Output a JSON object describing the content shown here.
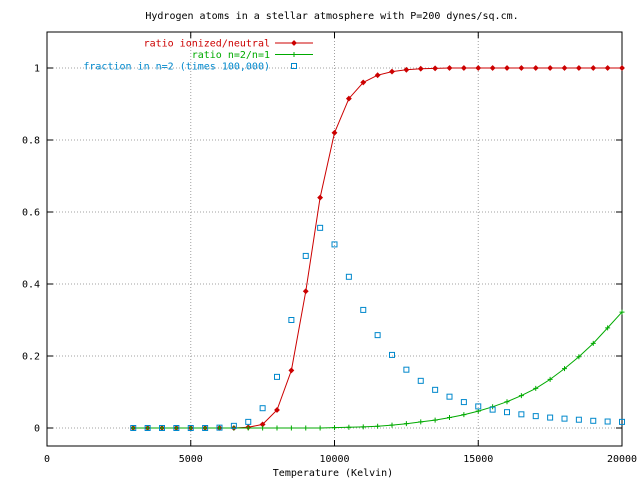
{
  "chart_data": {
    "type": "line",
    "title": "Hydrogen atoms in a stellar atmosphere with P=200 dynes/sq.cm.",
    "xlabel": "Temperature (Kelvin)",
    "ylabel": "",
    "xlim": [
      0,
      20000
    ],
    "ylim": [
      -0.05,
      1.1
    ],
    "x_ticks": [
      0,
      5000,
      10000,
      15000,
      20000
    ],
    "x_tick_labels": [
      "0",
      "5000",
      "10000",
      "15000",
      "20000"
    ],
    "y_ticks": [
      0,
      0.2,
      0.4,
      0.6,
      0.8,
      1
    ],
    "y_tick_labels": [
      "0",
      "0.2",
      "0.4",
      "0.6",
      "0.8",
      "1"
    ],
    "grid": true,
    "legend_position": "top-left",
    "series": [
      {
        "name": "ratio ionized/neutral",
        "style": "linespoints",
        "color": "#cc0000",
        "x": [
          3000,
          3500,
          4000,
          4500,
          5000,
          5500,
          6000,
          6500,
          7000,
          7500,
          8000,
          8500,
          9000,
          9500,
          10000,
          10500,
          11000,
          11500,
          12000,
          12500,
          13000,
          13500,
          14000,
          14500,
          15000,
          15500,
          16000,
          16500,
          17000,
          17500,
          18000,
          18500,
          19000,
          19500,
          20000
        ],
        "y": [
          0,
          0,
          0,
          0,
          0,
          0,
          0,
          0,
          0.002,
          0.01,
          0.05,
          0.16,
          0.38,
          0.64,
          0.82,
          0.915,
          0.96,
          0.98,
          0.99,
          0.995,
          0.998,
          0.999,
          1,
          1,
          1,
          1,
          1,
          1,
          1,
          1,
          1,
          1,
          1,
          1,
          1
        ]
      },
      {
        "name": "ratio n=2/n=1",
        "style": "linespoints",
        "color": "#00aa00",
        "x": [
          3000,
          3500,
          4000,
          4500,
          5000,
          5500,
          6000,
          6500,
          7000,
          7500,
          8000,
          8500,
          9000,
          9500,
          10000,
          10500,
          11000,
          11500,
          12000,
          12500,
          13000,
          13500,
          14000,
          14500,
          15000,
          15500,
          16000,
          16500,
          17000,
          17500,
          18000,
          18500,
          19000,
          19500,
          20000
        ],
        "y": [
          0,
          0,
          0,
          0,
          0,
          0,
          0,
          0,
          0,
          0,
          0,
          0,
          0,
          0,
          0.001,
          0.002,
          0.003,
          0.005,
          0.008,
          0.012,
          0.017,
          0.022,
          0.029,
          0.037,
          0.047,
          0.059,
          0.073,
          0.09,
          0.11,
          0.135,
          0.165,
          0.198,
          0.235,
          0.278,
          0.322
        ]
      },
      {
        "name": "fraction in n=2 (times 100,000)",
        "style": "points",
        "color": "#0088cc",
        "x": [
          3000,
          3500,
          4000,
          4500,
          5000,
          5500,
          6000,
          6500,
          7000,
          7500,
          8000,
          8500,
          9000,
          9500,
          10000,
          10500,
          11000,
          11500,
          12000,
          12500,
          13000,
          13500,
          14000,
          14500,
          15000,
          15500,
          16000,
          16500,
          17000,
          17500,
          18000,
          18500,
          19000,
          19500,
          20000
        ],
        "y": [
          0,
          0,
          0,
          0,
          0,
          0,
          0.001,
          0.006,
          0.017,
          0.055,
          0.142,
          0.3,
          0.478,
          0.556,
          0.51,
          0.42,
          0.328,
          0.258,
          0.203,
          0.162,
          0.131,
          0.106,
          0.087,
          0.072,
          0.06,
          0.051,
          0.044,
          0.038,
          0.033,
          0.029,
          0.026,
          0.023,
          0.02,
          0.018,
          0.017
        ]
      }
    ]
  }
}
